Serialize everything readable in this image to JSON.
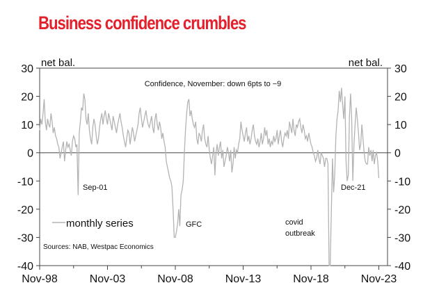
{
  "chart_data": {
    "type": "line",
    "title": "Business confidence crumbles",
    "subtitle": "Confidence, November: down 6pts to −9",
    "ylabel_left": "net bal.",
    "ylabel_right": "net bal.",
    "ylim": [
      -40,
      30
    ],
    "yticks": [
      "30",
      "20",
      "10",
      "0",
      "-10",
      "-20",
      "-30",
      "-40"
    ],
    "yticks_values": [
      30,
      20,
      10,
      0,
      -10,
      -20,
      -30,
      -40
    ],
    "xticks": [
      "Nov-98",
      "Nov-03",
      "Nov-08",
      "Nov-13",
      "Nov-18",
      "Nov-23"
    ],
    "start": "Nov-98",
    "frequency": "monthly",
    "legend": "monthly series",
    "legend_position": "bottom-left",
    "source": "Sources:  NAB, Westpac Economics",
    "annotations": [
      {
        "text": "Sep-01",
        "month_index": 34,
        "value": -15
      },
      {
        "text": "GFC",
        "month_index": 121,
        "value": -30
      },
      {
        "text": "covid",
        "month_index": 249,
        "value": -30
      },
      {
        "text": "outbreak",
        "month_index": 249,
        "value": -33
      },
      {
        "text": "Dec-21",
        "month_index": 277,
        "value": -15
      }
    ],
    "line_color": "#b3b3b3",
    "values": [
      8,
      12,
      10,
      14,
      19,
      11,
      8,
      12,
      10,
      9,
      14,
      11,
      7,
      9,
      6,
      5,
      3,
      2,
      -2,
      0,
      2,
      4,
      -3,
      1,
      4,
      2,
      3,
      1,
      -1,
      4,
      6,
      5,
      2,
      3,
      -15,
      7,
      11,
      16,
      15,
      21,
      19,
      12,
      10,
      14,
      8,
      5,
      3,
      9,
      12,
      10,
      6,
      3,
      5,
      9,
      12,
      14,
      10,
      13,
      15,
      12,
      10,
      14,
      12,
      10,
      8,
      13,
      11,
      9,
      7,
      10,
      12,
      14,
      11,
      9,
      6,
      4,
      2,
      5,
      8,
      7,
      3,
      6,
      9,
      7,
      4,
      6,
      8,
      10,
      14,
      16,
      12,
      9,
      11,
      13,
      15,
      12,
      10,
      9,
      11,
      13,
      9,
      7,
      12,
      14,
      10,
      8,
      11,
      9,
      5,
      7,
      4,
      2,
      -3,
      -5,
      -7,
      -9,
      -10,
      -12,
      -20,
      -30,
      -30,
      -28,
      -25,
      -20,
      -26,
      -15,
      -13,
      -10,
      0,
      8,
      14,
      18,
      19,
      13,
      15,
      12,
      10,
      9,
      11,
      5,
      3,
      7,
      6,
      4,
      8,
      10,
      5,
      3,
      2,
      6,
      1,
      -2,
      -4,
      -1,
      2,
      -8,
      0,
      3,
      -1,
      2,
      4,
      -2,
      1,
      -5,
      -3,
      -1,
      2,
      0,
      -3,
      1,
      -7,
      -4,
      2,
      -2,
      1,
      0,
      3,
      5,
      11,
      8,
      6,
      4,
      7,
      9,
      4,
      6,
      3,
      5,
      8,
      10,
      6,
      4,
      3,
      5,
      2,
      4,
      7,
      3,
      5,
      9,
      6,
      8,
      3,
      5,
      2,
      4,
      3,
      6,
      4,
      5,
      8,
      3,
      6,
      8,
      4,
      2,
      5,
      7,
      6,
      8,
      5,
      11,
      9,
      7,
      12,
      8,
      6,
      10,
      9,
      11,
      12,
      9,
      7,
      10,
      8,
      5,
      6,
      4,
      7,
      5,
      3,
      2,
      0,
      -1,
      -3,
      -2,
      1,
      -2,
      -4,
      0,
      -1,
      -2,
      -5,
      -2,
      -2,
      -4,
      -40,
      -40,
      -20,
      -2,
      -14,
      -8,
      6,
      12,
      15,
      22,
      18,
      23,
      17,
      12,
      20,
      -3,
      -10,
      -8,
      13,
      21,
      12,
      -10,
      3,
      10,
      16,
      12,
      7,
      1,
      3,
      10,
      5,
      0,
      -3,
      -4,
      -4,
      2,
      -1,
      1,
      -3,
      1,
      -4,
      -1,
      0,
      -3,
      -9
    ]
  }
}
